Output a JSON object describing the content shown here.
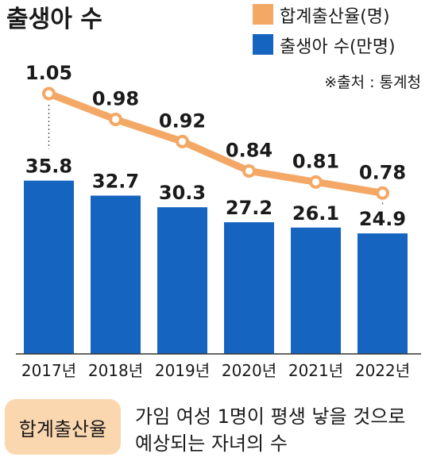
{
  "chart_data": {
    "type": "bar+line",
    "title": "출생아 수",
    "source": "※출처 : 통계청",
    "categories": [
      "2017년",
      "2018년",
      "2019년",
      "2020년",
      "2021년",
      "2022년"
    ],
    "series": [
      {
        "name": "출생아 수(만명)",
        "kind": "bar",
        "color": "#1565c0",
        "values": [
          35.8,
          32.7,
          30.3,
          27.2,
          26.1,
          24.9
        ],
        "labels": [
          "35.8",
          "32.7",
          "30.3",
          "27.2",
          "26.1",
          "24.9"
        ]
      },
      {
        "name": "합계출산율(명)",
        "kind": "line",
        "color": "#f4a866",
        "values": [
          1.05,
          0.98,
          0.92,
          0.84,
          0.81,
          0.78
        ],
        "labels": [
          "1.05",
          "0.98",
          "0.92",
          "0.84",
          "0.81",
          "0.78"
        ]
      }
    ],
    "legend_position": "top-right",
    "grid": false
  },
  "footer": {
    "term": "합계출산율",
    "definition_line1": "가임 여성 1명이 평생 낳을 것으로",
    "definition_line2": "예상되는 자녀의 수"
  }
}
